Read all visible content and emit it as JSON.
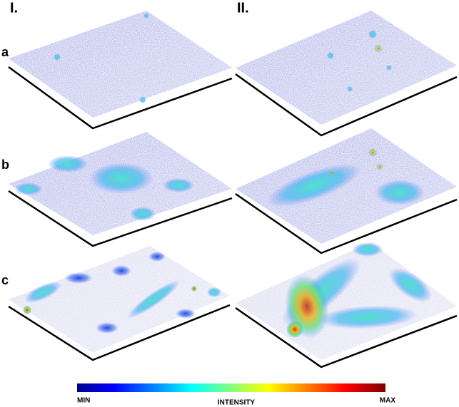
{
  "columns": [
    "I.",
    "II."
  ],
  "rows": [
    "a",
    "b",
    "c"
  ],
  "colorbar": {
    "min": "MIN",
    "title": "INTENSITY",
    "max": "MAX"
  }
}
